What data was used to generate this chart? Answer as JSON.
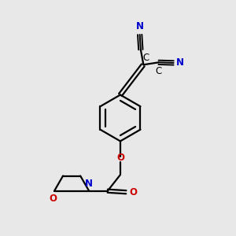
{
  "bg_color": "#e8e8e8",
  "bond_color": "#000000",
  "nitrogen_color": "#0000cc",
  "oxygen_color": "#cc0000",
  "line_width": 1.6,
  "font_size": 8.5,
  "fig_size": [
    3.0,
    3.0
  ],
  "dpi": 100,
  "xlim": [
    0,
    10
  ],
  "ylim": [
    0,
    10
  ]
}
